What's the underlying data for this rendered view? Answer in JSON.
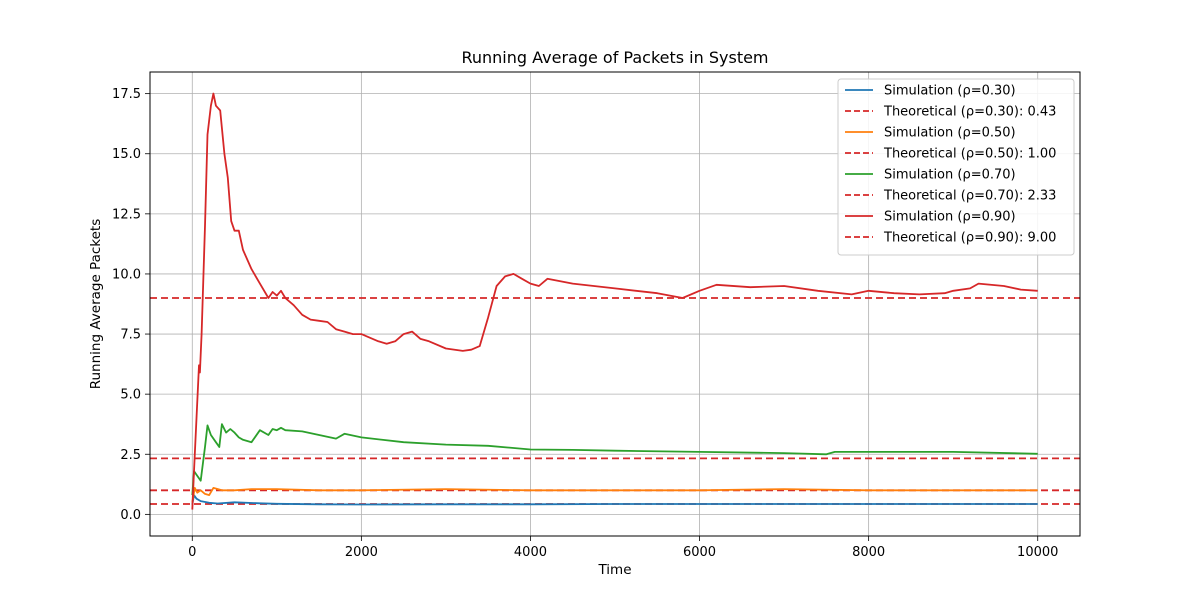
{
  "chart_data": {
    "type": "line",
    "title": "Running Average of Packets in System",
    "xlabel": "Time",
    "ylabel": "Running Average Packets",
    "xlim": [
      -500,
      10500
    ],
    "ylim": [
      -0.9,
      18.4
    ],
    "xticks": [
      0,
      2000,
      4000,
      6000,
      8000,
      10000
    ],
    "xtick_labels": [
      "0",
      "2000",
      "4000",
      "6000",
      "8000",
      "10000"
    ],
    "yticks": [
      0,
      2.5,
      5,
      7.5,
      10,
      12.5,
      15,
      17.5
    ],
    "ytick_labels": [
      "0.0",
      "2.5",
      "5.0",
      "7.5",
      "10.0",
      "12.5",
      "15.0",
      "17.5"
    ],
    "grid": true,
    "legend_position": "top-right",
    "series": [
      {
        "name": "Simulation (ρ=0.30)",
        "color": "#1f77b4",
        "style": "solid",
        "points": [
          [
            0,
            0.4
          ],
          [
            20,
            0.8
          ],
          [
            50,
            0.65
          ],
          [
            100,
            0.55
          ],
          [
            200,
            0.48
          ],
          [
            300,
            0.45
          ],
          [
            500,
            0.5
          ],
          [
            800,
            0.46
          ],
          [
            1000,
            0.44
          ],
          [
            1500,
            0.42
          ],
          [
            2000,
            0.41
          ],
          [
            3000,
            0.42
          ],
          [
            4000,
            0.42
          ],
          [
            5000,
            0.43
          ],
          [
            6000,
            0.43
          ],
          [
            7000,
            0.43
          ],
          [
            8000,
            0.43
          ],
          [
            9000,
            0.43
          ],
          [
            10000,
            0.43
          ]
        ]
      },
      {
        "name": "Theoretical (ρ=0.30): 0.43",
        "color": "#d62728",
        "style": "dashed",
        "hline": 0.43
      },
      {
        "name": "Simulation (ρ=0.50)",
        "color": "#ff7f0e",
        "style": "solid",
        "points": [
          [
            0,
            0.5
          ],
          [
            30,
            1.1
          ],
          [
            60,
            0.9
          ],
          [
            100,
            1.0
          ],
          [
            150,
            0.85
          ],
          [
            200,
            0.8
          ],
          [
            250,
            1.1
          ],
          [
            350,
            1.0
          ],
          [
            500,
            1.0
          ],
          [
            700,
            1.05
          ],
          [
            1000,
            1.05
          ],
          [
            1500,
            1.0
          ],
          [
            2000,
            1.0
          ],
          [
            3000,
            1.05
          ],
          [
            4000,
            1.0
          ],
          [
            5000,
            1.0
          ],
          [
            6000,
            1.0
          ],
          [
            7000,
            1.05
          ],
          [
            8000,
            1.0
          ],
          [
            9000,
            1.0
          ],
          [
            10000,
            1.0
          ]
        ]
      },
      {
        "name": "Theoretical (ρ=0.50): 1.00",
        "color": "#d62728",
        "style": "dashed",
        "hline": 1.0
      },
      {
        "name": "Simulation (ρ=0.70)",
        "color": "#2ca02c",
        "style": "solid",
        "points": [
          [
            0,
            0.8
          ],
          [
            20,
            1.8
          ],
          [
            60,
            1.6
          ],
          [
            100,
            1.4
          ],
          [
            150,
            2.8
          ],
          [
            180,
            3.7
          ],
          [
            220,
            3.3
          ],
          [
            280,
            3.0
          ],
          [
            320,
            2.8
          ],
          [
            350,
            3.75
          ],
          [
            400,
            3.4
          ],
          [
            450,
            3.55
          ],
          [
            500,
            3.4
          ],
          [
            550,
            3.2
          ],
          [
            600,
            3.1
          ],
          [
            700,
            3.0
          ],
          [
            800,
            3.5
          ],
          [
            900,
            3.3
          ],
          [
            950,
            3.55
          ],
          [
            1000,
            3.5
          ],
          [
            1050,
            3.6
          ],
          [
            1100,
            3.5
          ],
          [
            1300,
            3.45
          ],
          [
            1500,
            3.3
          ],
          [
            1700,
            3.15
          ],
          [
            1800,
            3.35
          ],
          [
            2000,
            3.2
          ],
          [
            2500,
            3.0
          ],
          [
            3000,
            2.9
          ],
          [
            3500,
            2.85
          ],
          [
            4000,
            2.7
          ],
          [
            4500,
            2.68
          ],
          [
            5000,
            2.65
          ],
          [
            6000,
            2.6
          ],
          [
            7000,
            2.55
          ],
          [
            7500,
            2.5
          ],
          [
            7600,
            2.6
          ],
          [
            8000,
            2.6
          ],
          [
            9000,
            2.6
          ],
          [
            10000,
            2.52
          ]
        ]
      },
      {
        "name": "Theoretical (ρ=0.70): 2.33",
        "color": "#d62728",
        "style": "dashed",
        "hline": 2.33
      },
      {
        "name": "Simulation (ρ=0.90)",
        "color": "#d62728",
        "style": "solid",
        "points": [
          [
            0,
            0.2
          ],
          [
            20,
            1.8
          ],
          [
            50,
            4.0
          ],
          [
            80,
            6.2
          ],
          [
            90,
            5.9
          ],
          [
            110,
            7.5
          ],
          [
            150,
            12.0
          ],
          [
            180,
            15.8
          ],
          [
            220,
            17.0
          ],
          [
            250,
            17.5
          ],
          [
            280,
            17.0
          ],
          [
            330,
            16.8
          ],
          [
            380,
            15.0
          ],
          [
            420,
            14.0
          ],
          [
            460,
            12.2
          ],
          [
            500,
            11.8
          ],
          [
            550,
            11.8
          ],
          [
            600,
            11.0
          ],
          [
            700,
            10.2
          ],
          [
            800,
            9.6
          ],
          [
            900,
            9.0
          ],
          [
            950,
            9.25
          ],
          [
            1000,
            9.1
          ],
          [
            1050,
            9.3
          ],
          [
            1100,
            9.0
          ],
          [
            1200,
            8.7
          ],
          [
            1300,
            8.3
          ],
          [
            1400,
            8.1
          ],
          [
            1500,
            8.05
          ],
          [
            1600,
            8.0
          ],
          [
            1700,
            7.7
          ],
          [
            1800,
            7.6
          ],
          [
            1900,
            7.5
          ],
          [
            2000,
            7.5
          ],
          [
            2100,
            7.35
          ],
          [
            2200,
            7.2
          ],
          [
            2300,
            7.1
          ],
          [
            2400,
            7.2
          ],
          [
            2500,
            7.5
          ],
          [
            2600,
            7.6
          ],
          [
            2700,
            7.3
          ],
          [
            2800,
            7.2
          ],
          [
            3000,
            6.9
          ],
          [
            3200,
            6.8
          ],
          [
            3300,
            6.85
          ],
          [
            3400,
            7.0
          ],
          [
            3500,
            8.2
          ],
          [
            3600,
            9.5
          ],
          [
            3700,
            9.9
          ],
          [
            3800,
            10.0
          ],
          [
            3900,
            9.8
          ],
          [
            4000,
            9.6
          ],
          [
            4100,
            9.5
          ],
          [
            4200,
            9.8
          ],
          [
            4500,
            9.6
          ],
          [
            5000,
            9.4
          ],
          [
            5500,
            9.2
          ],
          [
            5800,
            9.0
          ],
          [
            6000,
            9.3
          ],
          [
            6200,
            9.55
          ],
          [
            6600,
            9.45
          ],
          [
            7000,
            9.5
          ],
          [
            7400,
            9.3
          ],
          [
            7800,
            9.15
          ],
          [
            8000,
            9.3
          ],
          [
            8300,
            9.2
          ],
          [
            8600,
            9.15
          ],
          [
            8900,
            9.2
          ],
          [
            9000,
            9.3
          ],
          [
            9200,
            9.4
          ],
          [
            9300,
            9.6
          ],
          [
            9600,
            9.5
          ],
          [
            9800,
            9.35
          ],
          [
            10000,
            9.3
          ]
        ]
      },
      {
        "name": "Theoretical (ρ=0.90): 9.00",
        "color": "#d62728",
        "style": "dashed",
        "hline": 9.0
      }
    ]
  }
}
